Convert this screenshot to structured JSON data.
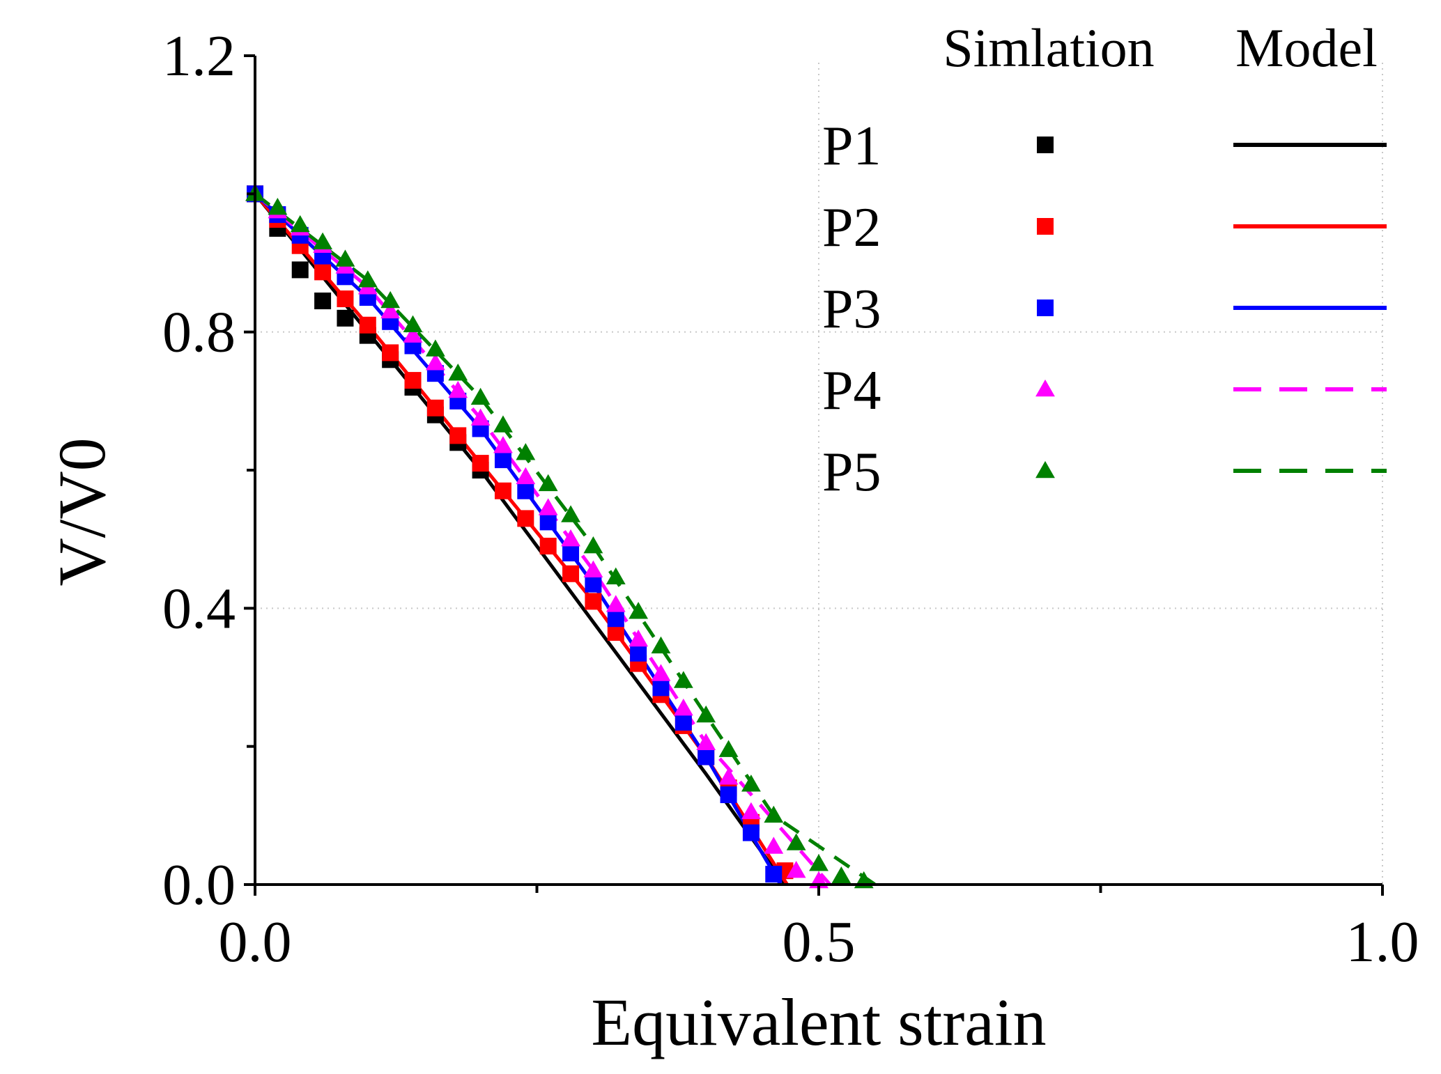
{
  "chart_data": {
    "type": "line",
    "title": "",
    "xlabel": "Equivalent strain",
    "ylabel": "V/V0",
    "xlim": [
      0.0,
      1.0
    ],
    "ylim": [
      0.0,
      1.2
    ],
    "x_ticks": [
      0.0,
      0.25,
      0.5,
      0.75,
      1.0
    ],
    "x_tick_labels": [
      "0.0",
      "",
      "0.5",
      "",
      "1.0"
    ],
    "y_ticks": [
      0.0,
      0.2,
      0.4,
      0.6,
      0.8,
      1.0,
      1.2
    ],
    "y_tick_labels": [
      "0.0",
      "",
      "0.4",
      "",
      "0.8",
      "",
      "1.2"
    ],
    "grid": true,
    "legend": {
      "position": "top-right",
      "simulation_header": "Simlation",
      "model_header": "Model"
    },
    "series": [
      {
        "name": "P1",
        "color": "#000000",
        "marker": "square",
        "line_style": "solid",
        "simulation": {
          "x": [
            0.0,
            0.02,
            0.04,
            0.06,
            0.08,
            0.1,
            0.12,
            0.14,
            0.16,
            0.18,
            0.2
          ],
          "y": [
            1.0,
            0.95,
            0.89,
            0.845,
            0.82,
            0.795,
            0.76,
            0.72,
            0.68,
            0.64,
            0.6
          ]
        },
        "model": {
          "x": [
            0.0,
            0.1,
            0.2,
            0.3,
            0.4,
            0.47
          ],
          "y": [
            1.0,
            0.8,
            0.6,
            0.38,
            0.16,
            0.0
          ]
        }
      },
      {
        "name": "P2",
        "color": "#ff0000",
        "marker": "square",
        "line_style": "solid",
        "simulation": {
          "x": [
            0.0,
            0.02,
            0.04,
            0.06,
            0.08,
            0.1,
            0.12,
            0.14,
            0.16,
            0.18,
            0.2,
            0.22,
            0.24,
            0.26,
            0.28,
            0.3,
            0.32,
            0.34,
            0.36,
            0.38,
            0.4,
            0.42,
            0.44,
            0.47
          ],
          "y": [
            1.0,
            0.963,
            0.925,
            0.887,
            0.848,
            0.81,
            0.77,
            0.73,
            0.69,
            0.65,
            0.61,
            0.57,
            0.53,
            0.49,
            0.45,
            0.41,
            0.365,
            0.32,
            0.275,
            0.23,
            0.185,
            0.14,
            0.09,
            0.02
          ]
        },
        "model": {
          "x": [
            0.0,
            0.1,
            0.2,
            0.3,
            0.4,
            0.472
          ],
          "y": [
            1.0,
            0.81,
            0.61,
            0.41,
            0.185,
            0.0
          ]
        }
      },
      {
        "name": "P3",
        "color": "#0000ff",
        "marker": "square",
        "line_style": "solid",
        "simulation": {
          "x": [
            0.0,
            0.02,
            0.04,
            0.06,
            0.08,
            0.1,
            0.12,
            0.14,
            0.16,
            0.18,
            0.2,
            0.22,
            0.24,
            0.26,
            0.28,
            0.3,
            0.32,
            0.34,
            0.36,
            0.38,
            0.4,
            0.42,
            0.44,
            0.46
          ],
          "y": [
            1.0,
            0.97,
            0.94,
            0.91,
            0.88,
            0.85,
            0.815,
            0.78,
            0.74,
            0.7,
            0.66,
            0.615,
            0.57,
            0.525,
            0.48,
            0.435,
            0.385,
            0.335,
            0.285,
            0.235,
            0.185,
            0.13,
            0.075,
            0.015
          ]
        },
        "model": {
          "x": [
            0.0,
            0.1,
            0.2,
            0.3,
            0.4,
            0.466
          ],
          "y": [
            1.0,
            0.85,
            0.66,
            0.435,
            0.185,
            0.0
          ]
        }
      },
      {
        "name": "P4",
        "color": "#ff00ff",
        "marker": "triangle",
        "line_style": "dashed",
        "simulation": {
          "x": [
            0.0,
            0.02,
            0.04,
            0.06,
            0.08,
            0.1,
            0.12,
            0.14,
            0.16,
            0.18,
            0.2,
            0.22,
            0.24,
            0.26,
            0.28,
            0.3,
            0.32,
            0.34,
            0.36,
            0.38,
            0.4,
            0.42,
            0.44,
            0.46,
            0.48,
            0.5
          ],
          "y": [
            1.0,
            0.975,
            0.95,
            0.925,
            0.895,
            0.865,
            0.83,
            0.795,
            0.755,
            0.715,
            0.675,
            0.635,
            0.59,
            0.545,
            0.5,
            0.455,
            0.405,
            0.355,
            0.305,
            0.255,
            0.205,
            0.155,
            0.105,
            0.055,
            0.02,
            0.005
          ]
        },
        "model": {
          "x": [
            0.0,
            0.1,
            0.2,
            0.3,
            0.4,
            0.51
          ],
          "y": [
            1.0,
            0.865,
            0.675,
            0.455,
            0.205,
            0.0
          ]
        }
      },
      {
        "name": "P5",
        "color": "#008000",
        "marker": "triangle",
        "line_style": "dashed",
        "simulation": {
          "x": [
            0.0,
            0.02,
            0.04,
            0.06,
            0.08,
            0.1,
            0.12,
            0.14,
            0.16,
            0.18,
            0.2,
            0.22,
            0.24,
            0.26,
            0.28,
            0.3,
            0.32,
            0.34,
            0.36,
            0.38,
            0.4,
            0.42,
            0.44,
            0.46,
            0.48,
            0.5,
            0.52,
            0.54
          ],
          "y": [
            1.0,
            0.98,
            0.955,
            0.93,
            0.905,
            0.875,
            0.845,
            0.81,
            0.775,
            0.74,
            0.705,
            0.665,
            0.625,
            0.58,
            0.535,
            0.49,
            0.445,
            0.395,
            0.345,
            0.295,
            0.245,
            0.195,
            0.145,
            0.1,
            0.06,
            0.03,
            0.012,
            0.005
          ]
        },
        "model": {
          "x": [
            0.0,
            0.1,
            0.2,
            0.3,
            0.4,
            0.46,
            0.55
          ],
          "y": [
            1.0,
            0.875,
            0.705,
            0.49,
            0.245,
            0.1,
            0.0
          ]
        }
      }
    ]
  }
}
